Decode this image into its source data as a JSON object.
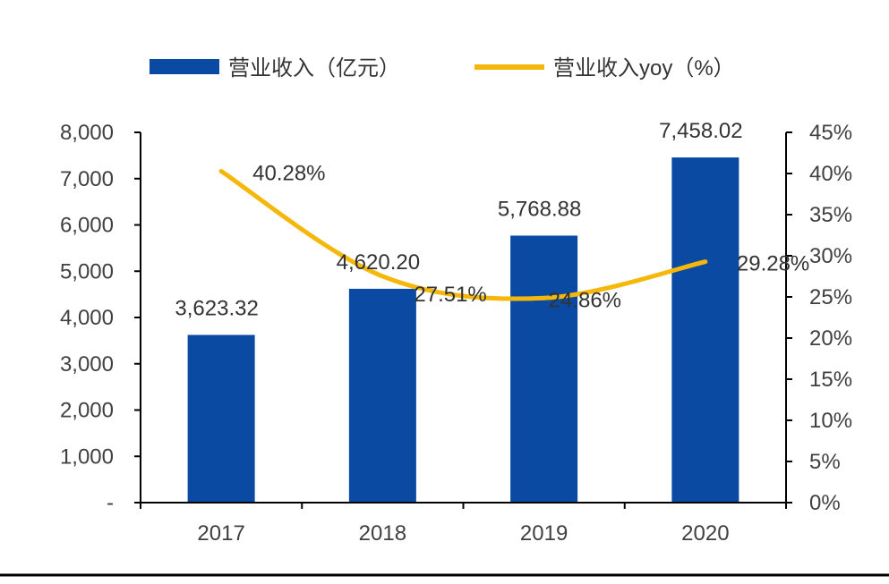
{
  "chart_data": {
    "type": "bar",
    "categories": [
      "2017",
      "2018",
      "2019",
      "2020"
    ],
    "series": [
      {
        "name": "营业收入（亿元）",
        "type": "bar",
        "axis": "left",
        "values": [
          3623.32,
          4620.2,
          5768.88,
          7458.02
        ],
        "labels": [
          "3,623.32",
          "4,620.20",
          "5,768.88",
          "7,458.02"
        ],
        "color": "#0a4aa3"
      },
      {
        "name": "营业收入yoy（%）",
        "type": "line",
        "axis": "right",
        "values": [
          40.28,
          27.51,
          24.86,
          29.28
        ],
        "labels": [
          "40.28%",
          "27.51%",
          "24.86%",
          "29.28%"
        ],
        "color": "#f5b80a"
      }
    ],
    "y_left": {
      "ylim": [
        0,
        8000
      ],
      "ticks": [
        0,
        1000,
        2000,
        3000,
        4000,
        5000,
        6000,
        7000,
        8000
      ],
      "tick_labels": [
        "-",
        "1,000",
        "2,000",
        "3,000",
        "4,000",
        "5,000",
        "6,000",
        "7,000",
        "8,000"
      ]
    },
    "y_right": {
      "ylim": [
        0,
        45
      ],
      "ticks": [
        0,
        5,
        10,
        15,
        20,
        25,
        30,
        35,
        40,
        45
      ],
      "tick_labels": [
        "0%",
        "5%",
        "10%",
        "15%",
        "20%",
        "25%",
        "30%",
        "35%",
        "40%",
        "45%"
      ]
    },
    "legend": "top-center",
    "grid": false
  }
}
